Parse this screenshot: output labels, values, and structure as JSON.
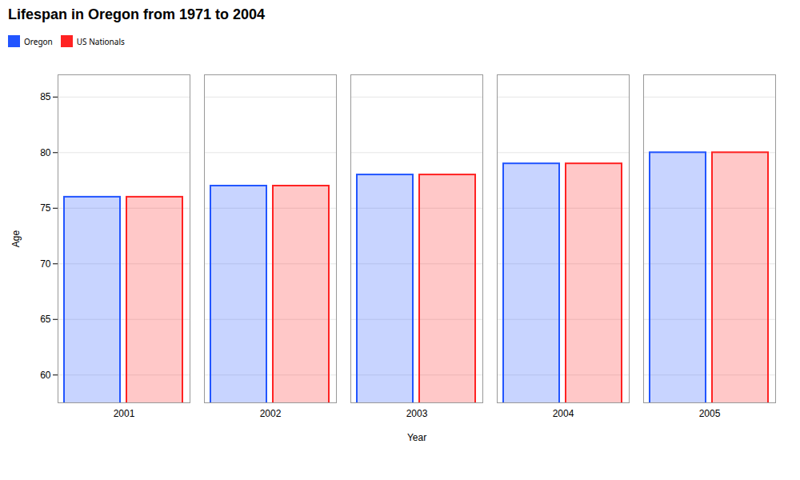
{
  "chart_data": {
    "type": "bar",
    "title": "Lifespan in Oregon from 1971 to 2004",
    "xlabel": "Year",
    "ylabel": "Age",
    "categories": [
      "2001",
      "2002",
      "2003",
      "2004",
      "2005"
    ],
    "series": [
      {
        "name": "Oregon",
        "color": "#2255ff",
        "values": [
          76,
          77,
          78,
          79,
          80
        ]
      },
      {
        "name": "US Nationals",
        "color": "#ff2222",
        "values": [
          76,
          77,
          78,
          79,
          80
        ]
      }
    ],
    "ylim": [
      57.5,
      87
    ],
    "yticks": [
      60,
      65,
      70,
      75,
      80,
      85
    ],
    "grid": true,
    "legend": "top"
  }
}
